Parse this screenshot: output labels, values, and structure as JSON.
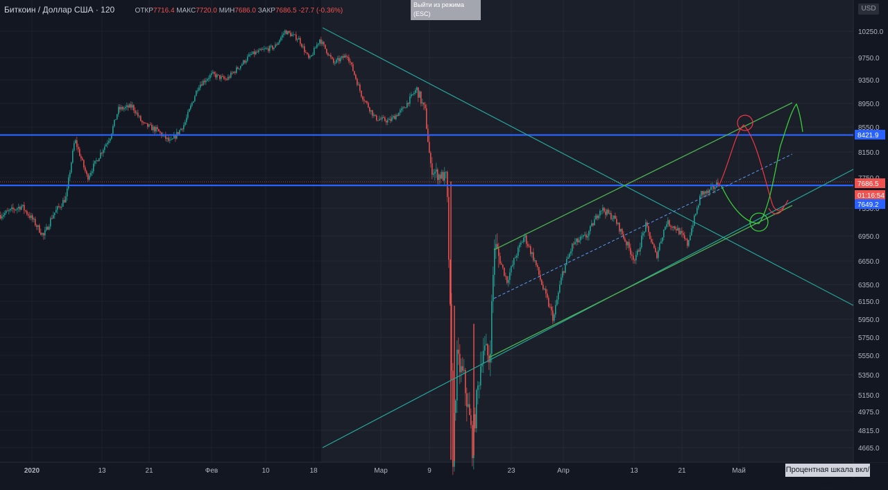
{
  "legend": {
    "symbol": "Биткоин / Доллар США · 120",
    "open_label": "ОТКР",
    "open": "7716.4",
    "high_label": "МАКС",
    "high": "7720.0",
    "low_label": "МИН",
    "low": "7686.0",
    "close_label": "ЗАКР",
    "close": "7686.5",
    "change": "-27.7 (-0.36%)"
  },
  "exit_fullscreen_line1": "Выйти из режима",
  "exit_fullscreen_line2": "(ESC)",
  "currency_badge": "USD",
  "percent_scale_button": "Процентная шкала вкл/выкл",
  "colors": {
    "background": "#131722",
    "up": "#26a69a",
    "down": "#ef5350",
    "level_line": "#2962ff",
    "channel": "#4caf50",
    "trendline": "#26a69a",
    "drawing_red": "#f23645",
    "drawing_green": "#3bce3b"
  },
  "chart_data": {
    "type": "candlestick",
    "title": "Биткоин / Доллар США · 120",
    "y_tick_labels": [
      "4665.0",
      "4815.0",
      "4975.0",
      "5150.0",
      "5350.0",
      "5550.0",
      "5750.0",
      "5950.0",
      "6150.0",
      "6350.0",
      "6650.0",
      "6950.0",
      "7350.0",
      "7750.0",
      "8150.0",
      "8550.0",
      "8950.0",
      "9350.0",
      "9750.0",
      "10250.0"
    ],
    "x_tick_labels": [
      "2020",
      "13",
      "21",
      "Фев",
      "10",
      "18",
      "Мар",
      "9",
      "23",
      "Апр",
      "13",
      "21",
      "Май"
    ],
    "price_markers": [
      {
        "label": "8421.9",
        "kind": "level"
      },
      {
        "label": "7686.5",
        "kind": "last-price"
      },
      {
        "label": "01:16:54",
        "kind": "countdown"
      },
      {
        "label": "7649.2",
        "kind": "level"
      }
    ],
    "horizontal_levels": [
      8421.9,
      7649.2
    ],
    "price_path": [
      [
        0,
        7250
      ],
      [
        30,
        7380
      ],
      [
        45,
        7200
      ],
      [
        62,
        6950
      ],
      [
        75,
        7250
      ],
      [
        95,
        7500
      ],
      [
        107,
        8350
      ],
      [
        125,
        7750
      ],
      [
        140,
        8050
      ],
      [
        158,
        8400
      ],
      [
        170,
        8850
      ],
      [
        190,
        8900
      ],
      [
        205,
        8600
      ],
      [
        225,
        8500
      ],
      [
        245,
        8300
      ],
      [
        265,
        8600
      ],
      [
        285,
        9250
      ],
      [
        305,
        9450
      ],
      [
        325,
        9350
      ],
      [
        345,
        9600
      ],
      [
        360,
        9800
      ],
      [
        380,
        9900
      ],
      [
        395,
        9950
      ],
      [
        410,
        10250
      ],
      [
        430,
        10100
      ],
      [
        445,
        9700
      ],
      [
        460,
        10100
      ],
      [
        480,
        9650
      ],
      [
        500,
        9800
      ],
      [
        520,
        9100
      ],
      [
        540,
        8700
      ],
      [
        560,
        8650
      ],
      [
        580,
        8850
      ],
      [
        600,
        9200
      ],
      [
        612,
        8800
      ],
      [
        620,
        7900
      ],
      [
        630,
        7800
      ],
      [
        643,
        7750
      ],
      [
        652,
        4600
      ],
      [
        658,
        5500
      ],
      [
        668,
        5300
      ],
      [
        680,
        4700
      ],
      [
        695,
        5650
      ],
      [
        705,
        5500
      ],
      [
        712,
        6850
      ],
      [
        730,
        6400
      ],
      [
        742,
        6700
      ],
      [
        755,
        6950
      ],
      [
        770,
        6650
      ],
      [
        782,
        6300
      ],
      [
        797,
        5950
      ],
      [
        810,
        6500
      ],
      [
        825,
        6850
      ],
      [
        845,
        6950
      ],
      [
        865,
        7350
      ],
      [
        885,
        7200
      ],
      [
        900,
        6900
      ],
      [
        915,
        6650
      ],
      [
        930,
        7100
      ],
      [
        945,
        6700
      ],
      [
        960,
        7150
      ],
      [
        975,
        7050
      ],
      [
        990,
        6850
      ],
      [
        1000,
        7200
      ],
      [
        1010,
        7550
      ],
      [
        1020,
        7550
      ],
      [
        1036,
        7690
      ]
    ]
  }
}
